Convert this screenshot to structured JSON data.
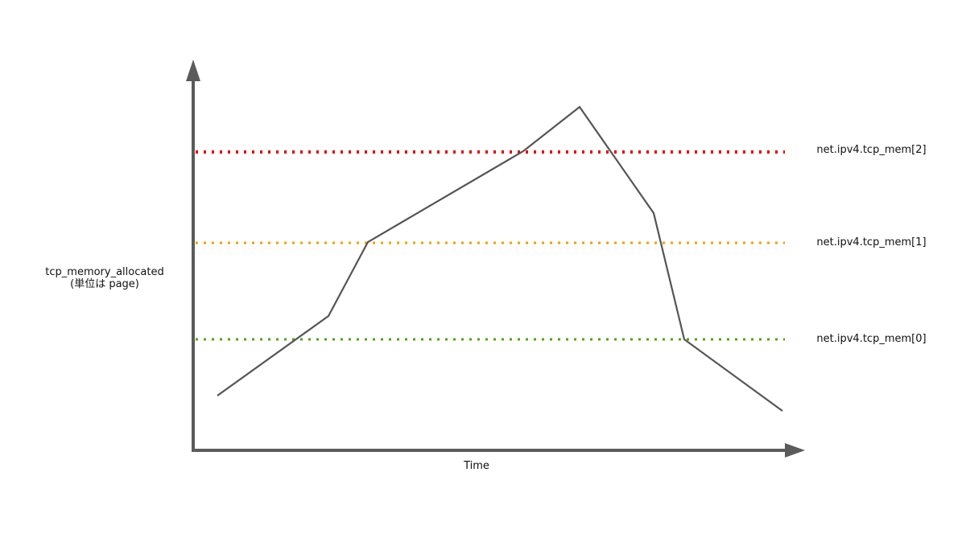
{
  "axes": {
    "y_label_line1": "tcp_memory_allocated",
    "y_label_line2": "(単位は page)",
    "x_label": "Time"
  },
  "thresholds": [
    {
      "label": "net.ipv4.tcp_mem[2]",
      "color": "#e8000b"
    },
    {
      "label": "net.ipv4.tcp_mem[1]",
      "color": "#f0a000"
    },
    {
      "label": "net.ipv4.tcp_mem[0]",
      "color": "#4aa51c"
    }
  ],
  "colors": {
    "axis": "#5b5b5b",
    "curve": "#555555"
  }
}
